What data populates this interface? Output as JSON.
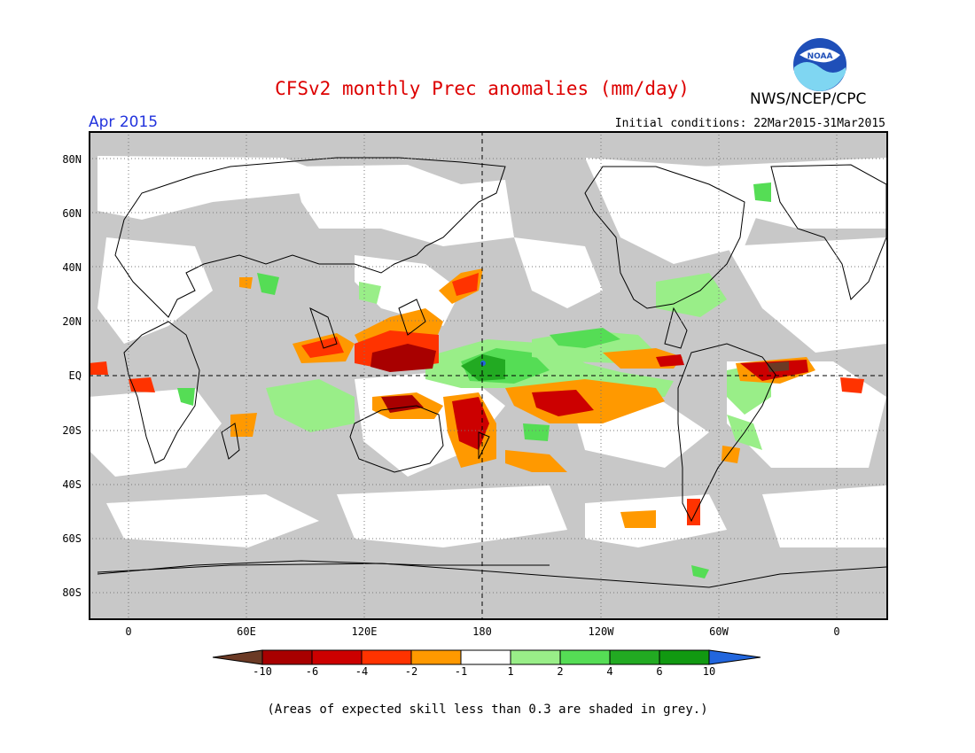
{
  "title": "CFSv2 monthly Prec anomalies (mm/day)",
  "agency": "NWS/NCEP/CPC",
  "valid_month": "Apr 2015",
  "initial_conditions": "Initial conditions: 22Mar2015-31Mar2015",
  "logo": {
    "icon": "noaa-logo",
    "text": "NOAA"
  },
  "lat_labels": [
    "80N",
    "60N",
    "40N",
    "20N",
    "EQ",
    "20S",
    "40S",
    "60S",
    "80S"
  ],
  "lon_labels": [
    "0",
    "60E",
    "120E",
    "180",
    "120W",
    "60W",
    "0"
  ],
  "colorbar": {
    "ticks": [
      "-10",
      "-6",
      "-4",
      "-2",
      "-1",
      "1",
      "2",
      "4",
      "6",
      "10"
    ],
    "colors": [
      "#6b3a25",
      "#a80000",
      "#cc0000",
      "#ff3300",
      "#ff9900",
      "#ffffff",
      "#99ee88",
      "#55dd55",
      "#22aa22",
      "#119911",
      "#2266dd"
    ]
  },
  "footnote": "(Areas of expected skill less than 0.3 are shaded in grey.)",
  "colors": {
    "title": "#dd0000",
    "month": "#2233dd",
    "skill_grey": "#c8c8c8"
  }
}
